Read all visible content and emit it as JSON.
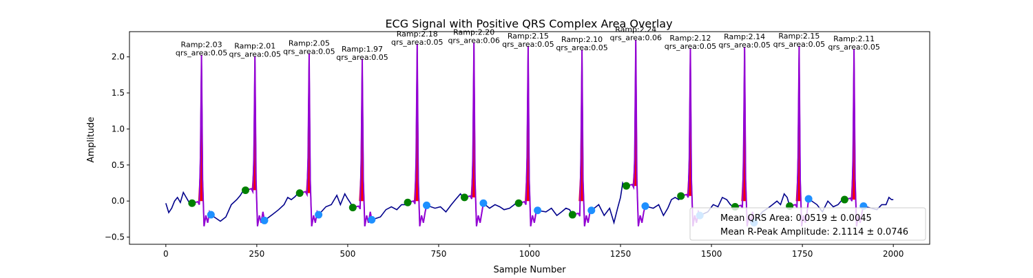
{
  "chart_data": {
    "type": "line",
    "title": "ECG Signal with Positive QRS Complex Area Overlay",
    "xlabel": "Sample Number",
    "ylabel": "Amplitude",
    "xlim": [
      -100,
      2100
    ],
    "ylim": [
      -0.6,
      2.35
    ],
    "xticks": [
      0,
      250,
      500,
      750,
      1000,
      1250,
      1500,
      1750,
      2000
    ],
    "yticks": [
      -0.5,
      0.0,
      0.5,
      1.0,
      1.5,
      2.0
    ],
    "xtick_labels": [
      "0",
      "250",
      "500",
      "750",
      "1000",
      "1250",
      "1500",
      "1750",
      "2000"
    ],
    "ytick_labels": [
      "−0.5",
      "0.0",
      "0.5",
      "1.0",
      "1.5",
      "2.0"
    ],
    "colors": {
      "ecg": "#00008b",
      "qrs_segment": "#9400d3",
      "qrs_area_fill": "#ff0000",
      "qrs_onset": "#008000",
      "qrs_offset": "#1e90ff"
    },
    "beats": [
      {
        "r_peak_x": 98,
        "r_amp": 2.03,
        "qrs_area": 0.05,
        "onset": [
          72,
          -0.03
        ],
        "offset": [
          124,
          -0.19
        ],
        "label_ramp": "Ramp:2.03",
        "label_area": "qrs_area:0.05"
      },
      {
        "r_peak_x": 245,
        "r_amp": 2.01,
        "qrs_area": 0.05,
        "onset": [
          219,
          0.15
        ],
        "offset": [
          271,
          -0.27
        ],
        "label_ramp": "Ramp:2.01",
        "label_area": "qrs_area:0.05"
      },
      {
        "r_peak_x": 394,
        "r_amp": 2.05,
        "qrs_area": 0.05,
        "onset": [
          368,
          0.11
        ],
        "offset": [
          420,
          -0.19
        ],
        "label_ramp": "Ramp:2.05",
        "label_area": "qrs_area:0.05"
      },
      {
        "r_peak_x": 540,
        "r_amp": 1.97,
        "qrs_area": 0.05,
        "onset": [
          514,
          -0.09
        ],
        "offset": [
          566,
          -0.26
        ],
        "label_ramp": "Ramp:1.97",
        "label_area": "qrs_area:0.05"
      },
      {
        "r_peak_x": 691,
        "r_amp": 2.18,
        "qrs_area": 0.05,
        "onset": [
          665,
          -0.02
        ],
        "offset": [
          717,
          -0.06
        ],
        "label_ramp": "Ramp:2.18",
        "label_area": "qrs_area:0.05"
      },
      {
        "r_peak_x": 847,
        "r_amp": 2.2,
        "qrs_area": 0.06,
        "onset": [
          821,
          0.05
        ],
        "offset": [
          873,
          -0.03
        ],
        "label_ramp": "Ramp:2.20",
        "label_area": "qrs_area:0.06"
      },
      {
        "r_peak_x": 996,
        "r_amp": 2.15,
        "qrs_area": 0.05,
        "onset": [
          970,
          -0.03
        ],
        "offset": [
          1022,
          -0.13
        ],
        "label_ramp": "Ramp:2.15",
        "label_area": "qrs_area:0.05"
      },
      {
        "r_peak_x": 1144,
        "r_amp": 2.1,
        "qrs_area": 0.05,
        "onset": [
          1118,
          -0.19
        ],
        "offset": [
          1170,
          -0.13
        ],
        "label_ramp": "Ramp:2.10",
        "label_area": "qrs_area:0.05"
      },
      {
        "r_peak_x": 1292,
        "r_amp": 2.24,
        "qrs_area": 0.06,
        "onset": [
          1266,
          0.21
        ],
        "offset": [
          1318,
          -0.07
        ],
        "label_ramp": "Ramp:2.24",
        "label_area": "qrs_area:0.06"
      },
      {
        "r_peak_x": 1442,
        "r_amp": 2.12,
        "qrs_area": 0.05,
        "onset": [
          1416,
          0.07
        ],
        "offset": [
          1468,
          -0.2
        ],
        "label_ramp": "Ramp:2.12",
        "label_area": "qrs_area:0.05"
      },
      {
        "r_peak_x": 1591,
        "r_amp": 2.14,
        "qrs_area": 0.05,
        "onset": [
          1565,
          -0.08
        ],
        "offset": [
          1617,
          -0.3
        ],
        "label_ramp": "Ramp:2.14",
        "label_area": "qrs_area:0.05"
      },
      {
        "r_peak_x": 1741,
        "r_amp": 2.15,
        "qrs_area": 0.05,
        "onset": [
          1715,
          -0.07
        ],
        "offset": [
          1767,
          0.03
        ],
        "label_ramp": "Ramp:2.15",
        "label_area": "qrs_area:0.05"
      },
      {
        "r_peak_x": 1892,
        "r_amp": 2.11,
        "qrs_area": 0.05,
        "onset": [
          1866,
          0.02
        ],
        "offset": [
          1918,
          -0.07
        ],
        "label_ramp": "Ramp:2.11",
        "label_area": "qrs_area:0.05"
      }
    ],
    "baseline_points": [
      [
        0,
        -0.03
      ],
      [
        8,
        -0.16
      ],
      [
        16,
        -0.1
      ],
      [
        24,
        0.0
      ],
      [
        32,
        0.05
      ],
      [
        40,
        -0.02
      ],
      [
        48,
        0.12
      ],
      [
        56,
        0.05
      ],
      [
        64,
        -0.02
      ],
      [
        72,
        -0.03
      ],
      [
        150,
        -0.28
      ],
      [
        165,
        -0.22
      ],
      [
        180,
        -0.05
      ],
      [
        195,
        0.02
      ],
      [
        205,
        0.08
      ],
      [
        212,
        0.14
      ],
      [
        219,
        0.15
      ],
      [
        295,
        -0.18
      ],
      [
        310,
        -0.12
      ],
      [
        325,
        -0.05
      ],
      [
        335,
        0.05
      ],
      [
        345,
        0.02
      ],
      [
        355,
        0.06
      ],
      [
        362,
        0.1
      ],
      [
        368,
        0.11
      ],
      [
        440,
        -0.08
      ],
      [
        455,
        -0.05
      ],
      [
        470,
        0.08
      ],
      [
        480,
        -0.05
      ],
      [
        492,
        0.1
      ],
      [
        500,
        0.03
      ],
      [
        508,
        -0.03
      ],
      [
        514,
        -0.09
      ],
      [
        590,
        -0.22
      ],
      [
        605,
        -0.12
      ],
      [
        620,
        -0.08
      ],
      [
        635,
        -0.12
      ],
      [
        648,
        -0.05
      ],
      [
        658,
        -0.05
      ],
      [
        665,
        -0.02
      ],
      [
        740,
        -0.1
      ],
      [
        755,
        -0.08
      ],
      [
        770,
        -0.15
      ],
      [
        785,
        -0.05
      ],
      [
        798,
        0.03
      ],
      [
        810,
        0.1
      ],
      [
        816,
        0.06
      ],
      [
        821,
        0.05
      ],
      [
        890,
        -0.1
      ],
      [
        905,
        -0.05
      ],
      [
        918,
        -0.08
      ],
      [
        930,
        -0.12
      ],
      [
        945,
        -0.1
      ],
      [
        958,
        -0.05
      ],
      [
        965,
        -0.02
      ],
      [
        970,
        -0.03
      ],
      [
        1045,
        -0.15
      ],
      [
        1060,
        -0.1
      ],
      [
        1075,
        -0.2
      ],
      [
        1088,
        -0.15
      ],
      [
        1100,
        -0.1
      ],
      [
        1110,
        -0.12
      ],
      [
        1118,
        -0.19
      ],
      [
        1190,
        -0.05
      ],
      [
        1205,
        -0.2
      ],
      [
        1220,
        -0.1
      ],
      [
        1232,
        -0.3
      ],
      [
        1242,
        -0.1
      ],
      [
        1250,
        0.05
      ],
      [
        1256,
        0.25
      ],
      [
        1262,
        0.18
      ],
      [
        1266,
        0.21
      ],
      [
        1340,
        -0.1
      ],
      [
        1355,
        -0.05
      ],
      [
        1368,
        -0.2
      ],
      [
        1380,
        -0.1
      ],
      [
        1390,
        0.02
      ],
      [
        1400,
        0.05
      ],
      [
        1410,
        0.02
      ],
      [
        1416,
        0.07
      ],
      [
        1490,
        -0.15
      ],
      [
        1505,
        -0.05
      ],
      [
        1518,
        -0.08
      ],
      [
        1530,
        0.05
      ],
      [
        1542,
        0.02
      ],
      [
        1552,
        -0.05
      ],
      [
        1560,
        -0.08
      ],
      [
        1565,
        -0.08
      ],
      [
        1640,
        -0.15
      ],
      [
        1655,
        -0.1
      ],
      [
        1668,
        -0.05
      ],
      [
        1680,
        0.0
      ],
      [
        1690,
        -0.05
      ],
      [
        1700,
        0.1
      ],
      [
        1708,
        0.05
      ],
      [
        1715,
        -0.07
      ],
      [
        1790,
        -0.05
      ],
      [
        1805,
        -0.15
      ],
      [
        1820,
        0.0
      ],
      [
        1835,
        -0.08
      ],
      [
        1848,
        -0.05
      ],
      [
        1858,
        0.01
      ],
      [
        1866,
        0.02
      ],
      [
        1940,
        -0.1
      ],
      [
        1955,
        -0.12
      ],
      [
        1968,
        -0.05
      ],
      [
        1980,
        -0.05
      ],
      [
        1988,
        0.05
      ],
      [
        1995,
        0.02
      ],
      [
        2000,
        0.02
      ]
    ],
    "legend": {
      "placement": "lower-right",
      "entries": [
        "Mean QRS Area: 0.0519 ± 0.0045",
        "Mean R-Peak Amplitude: 2.1114 ± 0.0746"
      ]
    }
  }
}
